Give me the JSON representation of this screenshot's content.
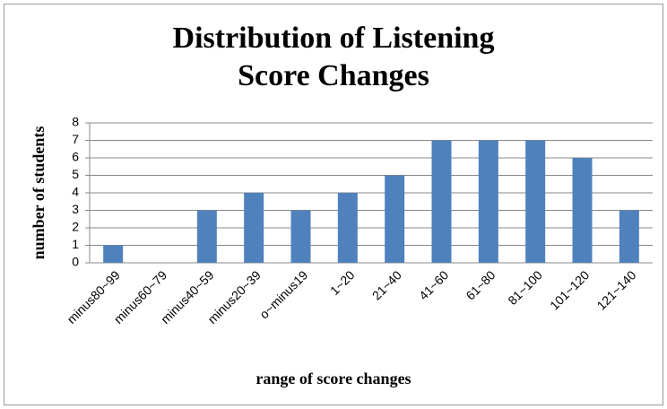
{
  "chart_data": {
    "type": "bar",
    "title": "Distribution of Listening Score Changes",
    "categories": [
      "minus80~99",
      "minus60~79",
      "minus40~59",
      "minus20~39",
      "o~minus19",
      "1~20",
      "21~40",
      "41~60",
      "61~80",
      "81~100",
      "101~120",
      "121~140"
    ],
    "values": [
      1,
      0,
      3,
      4,
      3,
      4,
      5,
      7,
      7,
      7,
      6,
      3
    ],
    "color": "#4f81bd",
    "ylim": [
      0,
      8
    ],
    "yticks": [
      0,
      1,
      2,
      3,
      4,
      5,
      6,
      7,
      8
    ],
    "grid": true,
    "ylabel": "number of students",
    "xlabel": "range of score changes"
  }
}
